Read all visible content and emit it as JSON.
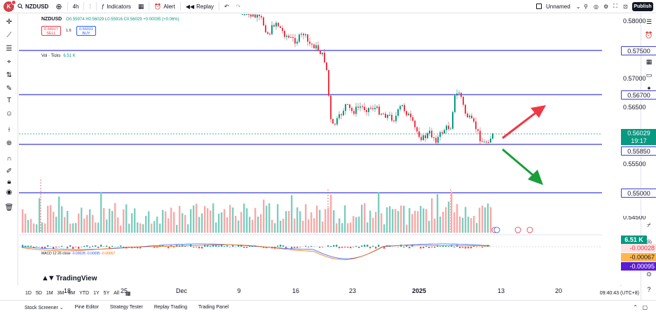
{
  "topbar": {
    "logo_letter": "K",
    "logo_badge": "11",
    "symbol": "NZDUSD",
    "interval": "4h",
    "indicators_label": "Indicators",
    "alert_label": "Alert",
    "replay_label": "Replay",
    "layout_name": "Unnamed",
    "publish_label": "Publish"
  },
  "legend": {
    "ohlc": "O0.55974 H0.56029 L0.55916 C0.56029 +0.00035 (+0.06%)",
    "sell_price": "0.56017",
    "sell_label": "SELL",
    "spread": "1.6",
    "buy_price": "0.56031",
    "buy_label": "BUY",
    "vol_title": "Vol · Ticks",
    "vol_value": "6.51 K",
    "macd_title": "MACD 12 26 close",
    "macd_v1": "-0.00028",
    "macd_v2": "-0.00095",
    "macd_v3": "-0.00067",
    "brand": "TradingView"
  },
  "price_axis": {
    "ticks": [
      "0.58000",
      "0.57000",
      "0.56500",
      "0.55500"
    ],
    "hline_labels": [
      "0.57500",
      "0.56700",
      "0.55850",
      "0.55000"
    ],
    "current_price": "0.56029",
    "countdown": "19:17",
    "volume_label": "6.51 K",
    "partial_tick": "0.54500",
    "macd_labels": [
      {
        "text": "-0.00028",
        "color": "#f23645",
        "bg": "#fce4e6"
      },
      {
        "text": "-0.00067",
        "color": "#131722",
        "bg": "#ffb74d"
      },
      {
        "text": "-0.00095",
        "color": "#ffffff",
        "bg": "#5b1cd4"
      }
    ]
  },
  "date_axis": {
    "labels": [
      {
        "text": "18",
        "bold": false
      },
      {
        "text": "25",
        "bold": false
      },
      {
        "text": "Dec",
        "bold": false
      },
      {
        "text": "9",
        "bold": false
      },
      {
        "text": "16",
        "bold": false
      },
      {
        "text": "23",
        "bold": false
      },
      {
        "text": "2025",
        "bold": true
      },
      {
        "text": "13",
        "bold": false
      },
      {
        "text": "20",
        "bold": false
      }
    ]
  },
  "ranges": [
    "1D",
    "5D",
    "1M",
    "3M",
    "6M",
    "YTD",
    "1Y",
    "5Y",
    "All"
  ],
  "clock": "09:40:43 (UTC+8)",
  "panel_tabs": [
    "Stock Screener",
    "Pine Editor",
    "Strategy Tester",
    "Replay Trading",
    "Trading Panel"
  ],
  "colors": {
    "up": "#089981",
    "down": "#f23645",
    "hline": "#3d3dd6",
    "arrow_up": "#f23645",
    "arrow_down": "#1a9e3a",
    "macd": "#2962ff",
    "signal": "#ff6d00"
  }
}
